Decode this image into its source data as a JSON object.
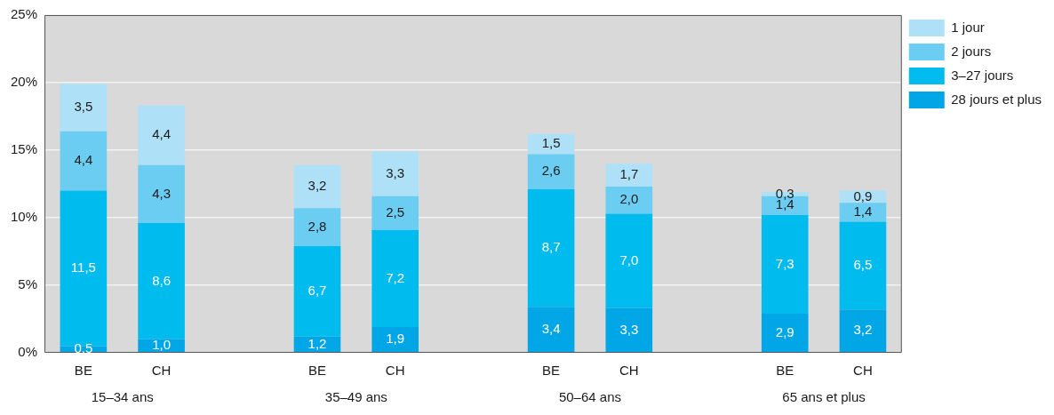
{
  "chart_data": {
    "type": "bar",
    "stacked": true,
    "categories": [
      "BE",
      "CH",
      null,
      "BE",
      "CH",
      null,
      "BE",
      "CH",
      null,
      "BE",
      "CH"
    ],
    "series": [
      {
        "name": "28 jours et plus",
        "color": "#00a6e6",
        "values": [
          0.5,
          1.0,
          null,
          1.2,
          1.9,
          null,
          3.4,
          3.3,
          null,
          2.9,
          3.2
        ],
        "value_labels": [
          "0,5",
          "1,0",
          null,
          "1,2",
          "1,9",
          null,
          "3,4",
          "3,3",
          null,
          "2,9",
          "3,2"
        ]
      },
      {
        "name": "3–27 jours",
        "color": "#00bbee",
        "values": [
          11.5,
          8.6,
          null,
          6.7,
          7.2,
          null,
          8.7,
          7.0,
          null,
          7.3,
          6.5
        ],
        "value_labels": [
          "11,5",
          "8,6",
          null,
          "6,7",
          "7,2",
          null,
          "8,7",
          "7,0",
          null,
          "7,3",
          "6,5"
        ]
      },
      {
        "name": "2 jours",
        "color": "#6bcdf2",
        "values": [
          4.4,
          4.3,
          null,
          2.8,
          2.5,
          null,
          2.6,
          2.0,
          null,
          1.4,
          1.4
        ],
        "value_labels": [
          "4,4",
          "4,3",
          null,
          "2,8",
          "2,5",
          null,
          "2,6",
          "2,0",
          null,
          "1,4",
          "1,4"
        ]
      },
      {
        "name": "1 jour",
        "color": "#aee1f8",
        "values": [
          3.5,
          4.4,
          null,
          3.2,
          3.3,
          null,
          1.5,
          1.7,
          null,
          0.3,
          0.9
        ],
        "value_labels": [
          "3,5",
          "4,4",
          null,
          "3,2",
          "3,3",
          null,
          "1,5",
          "1,7",
          null,
          "0,3",
          "0,9"
        ]
      }
    ],
    "ylim": [
      0,
      25
    ],
    "yticks": [
      {
        "value": 0,
        "label": "0%"
      },
      {
        "value": 5,
        "label": "5%"
      },
      {
        "value": 10,
        "label": "10%"
      },
      {
        "value": 15,
        "label": "15%"
      },
      {
        "value": 20,
        "label": "20%"
      },
      {
        "value": 25,
        "label": "25%"
      }
    ],
    "grid": "y",
    "legend": "top right",
    "annotations": [
      "15–34 ans",
      "35–49 ans",
      "50–64 ans",
      "65 ans et plus"
    ]
  }
}
